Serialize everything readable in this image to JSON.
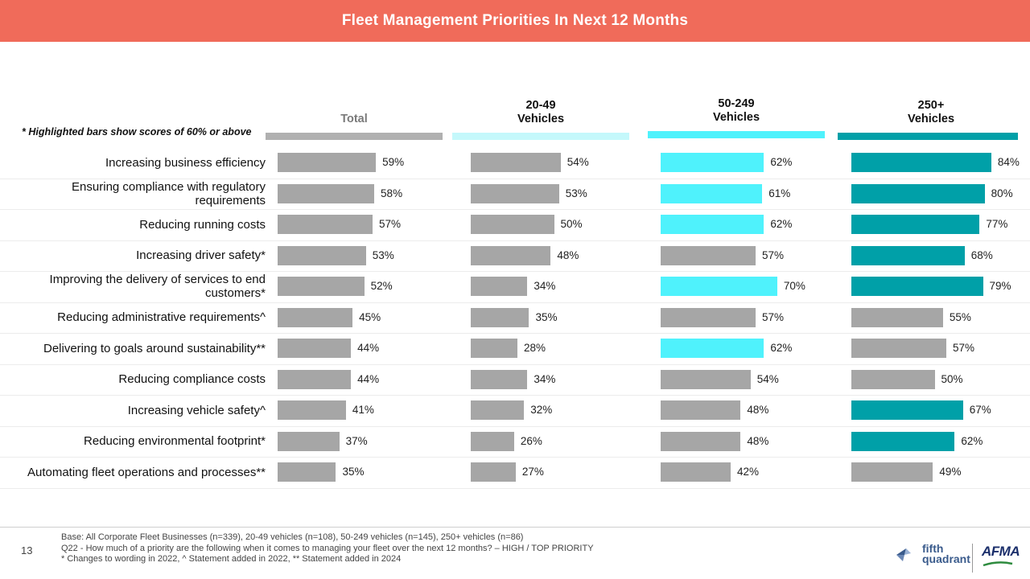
{
  "header": {
    "title": "Fleet Management Priorities In Next 12 Months"
  },
  "note": "* Highlighted bars show scores of 60% or above",
  "colors": {
    "header_bg": "#f06b5a",
    "gray": "#a6a6a6",
    "col1_highlight": "#a6a6a6",
    "col2_highlight": "#4ff2fc",
    "col3_highlight": "#00a0a8",
    "col0_head_bar": "#b0b0b0",
    "col1_head_bar": "#c4f8fb",
    "col2_head_bar": "#4ff2fc",
    "col3_head_bar": "#00a0a8"
  },
  "chart_data": {
    "type": "bar",
    "orientation": "horizontal",
    "title": "Fleet Management Priorities In Next 12 Months",
    "highlight_threshold": 60,
    "categories": [
      "Increasing business efficiency",
      "Ensuring compliance with regulatory requirements",
      "Reducing running costs",
      "Increasing driver safety*",
      "Improving the delivery of services to end customers*",
      "Reducing administrative requirements^",
      "Delivering to goals around sustainability**",
      "Reducing compliance costs",
      "Increasing vehicle safety^",
      "Reducing environmental footprint*",
      "Automating fleet operations and processes**"
    ],
    "series": [
      {
        "name": "Total",
        "head_lines": [
          "Total"
        ],
        "highlight": false,
        "values": [
          59,
          58,
          57,
          53,
          52,
          45,
          44,
          44,
          41,
          37,
          35
        ]
      },
      {
        "name": "20-49 Vehicles",
        "head_lines": [
          "20-49",
          "Vehicles"
        ],
        "highlight": false,
        "values": [
          54,
          53,
          50,
          48,
          34,
          35,
          28,
          34,
          32,
          26,
          27
        ]
      },
      {
        "name": "50-249 Vehicles",
        "head_lines": [
          "50-249",
          "Vehicles"
        ],
        "highlight": true,
        "values": [
          62,
          61,
          62,
          57,
          70,
          57,
          62,
          54,
          48,
          48,
          42
        ]
      },
      {
        "name": "250+ Vehicles",
        "head_lines": [
          "250+",
          "Vehicles"
        ],
        "highlight": true,
        "values": [
          84,
          80,
          77,
          68,
          79,
          55,
          57,
          50,
          67,
          62,
          49
        ]
      }
    ],
    "value_suffix": "%"
  },
  "footer": {
    "page_number": "13",
    "lines": [
      "Base: All Corporate Fleet Businesses (n=339), 20-49 vehicles (n=108), 50-249 vehicles (n=145), 250+ vehicles (n=86)",
      "Q22 - How much of a priority are the following when it comes to managing your fleet over the next 12 months? – HIGH / TOP PRIORITY",
      "* Changes to wording in 2022, ^ Statement added in 2022, ** Statement added in 2024"
    ]
  },
  "logos": {
    "left_lines": [
      "fifth",
      "quadrant"
    ],
    "right": "AFMA"
  }
}
